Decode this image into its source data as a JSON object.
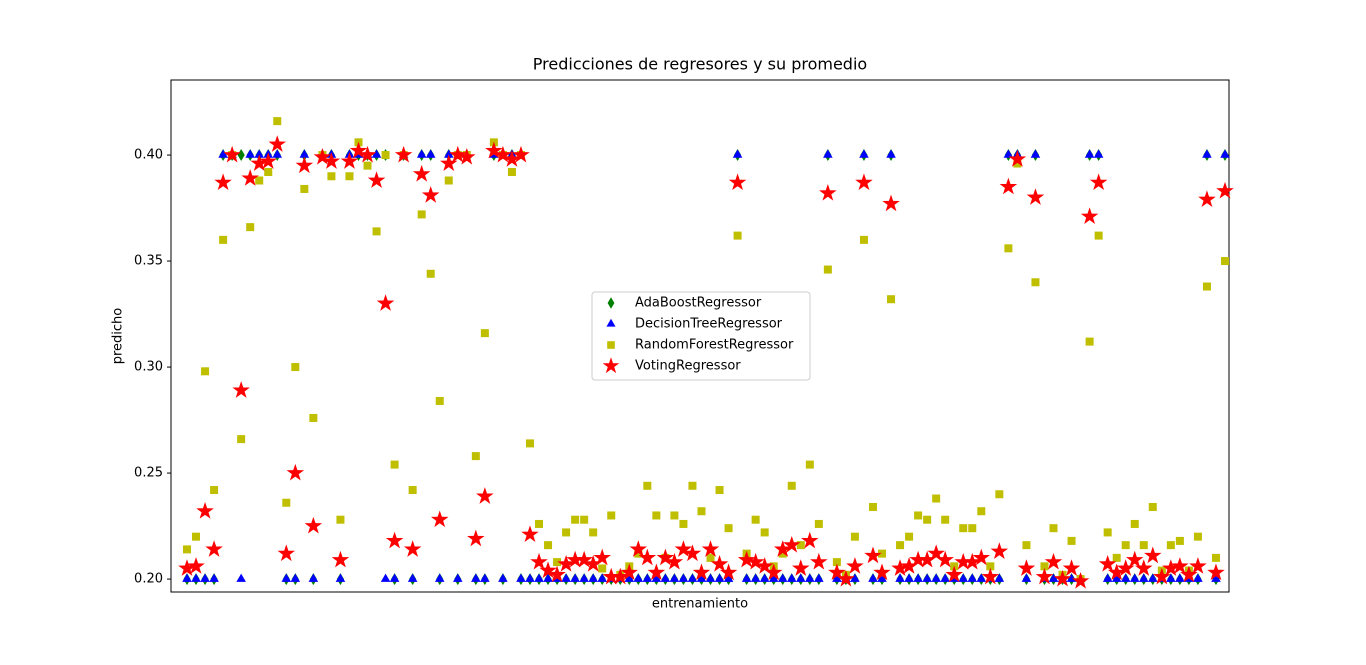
{
  "chart_data": {
    "type": "scatter",
    "title": "Predicciones de regresores y su promedio",
    "xlabel": "entrenamiento",
    "ylabel": "predicho",
    "ylim": [
      0.1939,
      0.4354
    ],
    "yticks": [
      {
        "value": 0.2,
        "label": "0.20"
      },
      0.25,
      {
        "value": 0.3,
        "label": "0.30"
      },
      0.35,
      {
        "value": 0.4,
        "label": "0.40"
      }
    ],
    "legend": "center",
    "series": [
      {
        "name": "AdaBoostRegressor",
        "color": "#008000",
        "marker": "diamond",
        "values": [
          0.2,
          0.2,
          0.2,
          0.2,
          0.4,
          0.4,
          0.4,
          0.4,
          0.4,
          0.4,
          0.4,
          0.2,
          0.2,
          0.4,
          0.2,
          0.4,
          0.4,
          0.2,
          0.4,
          0.4,
          0.4,
          0.4,
          0.4,
          0.2,
          0.4,
          0.2,
          0.4,
          0.4,
          0.2,
          0.4,
          0.2,
          0.4,
          0.2,
          0.2,
          0.4,
          0.2,
          0.4,
          0.2,
          0.2,
          0.2,
          0.2,
          0.2,
          0.2,
          0.2,
          0.2,
          0.2,
          0.2,
          0.2,
          0.2,
          0.2,
          0.2,
          0.2,
          0.2,
          0.2,
          0.2,
          0.2,
          0.2,
          0.2,
          0.2,
          0.2,
          0.2,
          0.4,
          0.2,
          0.2,
          0.2,
          0.2,
          0.2,
          0.2,
          0.2,
          0.2,
          0.2,
          0.4,
          0.2,
          0.2,
          0.2,
          0.4,
          0.2,
          0.2,
          0.4,
          0.2,
          0.2,
          0.2,
          0.2,
          0.2,
          0.2,
          0.2,
          0.2,
          0.2,
          0.2,
          0.2,
          0.2,
          0.4,
          0.4,
          0.2,
          0.4,
          0.2,
          0.2,
          0.2,
          0.2,
          0.2,
          0.4,
          0.4,
          0.2,
          0.2,
          0.2,
          0.2,
          0.2,
          0.2,
          0.2,
          0.2,
          0.2,
          0.2,
          0.2,
          0.4,
          0.2,
          0.4
        ]
      },
      {
        "name": "DecisionTreeRegressor",
        "color": "#0000ff",
        "marker": "triangle",
        "values": [
          0.2,
          0.2,
          0.2,
          0.2,
          0.4,
          0.4,
          0.2,
          0.4,
          0.4,
          0.4,
          0.4,
          0.2,
          0.2,
          0.4,
          0.2,
          0.4,
          0.4,
          0.2,
          0.4,
          0.4,
          0.4,
          0.4,
          0.2,
          0.2,
          0.4,
          0.2,
          0.4,
          0.4,
          0.2,
          0.4,
          0.2,
          0.4,
          0.2,
          0.2,
          0.4,
          0.2,
          0.4,
          0.2,
          0.2,
          0.2,
          0.2,
          0.2,
          0.2,
          0.2,
          0.2,
          0.2,
          0.2,
          0.2,
          0.2,
          0.2,
          0.2,
          0.2,
          0.2,
          0.2,
          0.2,
          0.2,
          0.2,
          0.2,
          0.2,
          0.2,
          0.2,
          0.4,
          0.2,
          0.2,
          0.2,
          0.2,
          0.2,
          0.2,
          0.2,
          0.2,
          0.2,
          0.4,
          0.2,
          0.2,
          0.2,
          0.4,
          0.2,
          0.2,
          0.4,
          0.2,
          0.2,
          0.2,
          0.2,
          0.2,
          0.2,
          0.2,
          0.2,
          0.2,
          0.2,
          0.2,
          0.2,
          0.4,
          0.4,
          0.2,
          0.4,
          0.2,
          0.2,
          0.2,
          0.2,
          0.2,
          0.4,
          0.4,
          0.2,
          0.2,
          0.2,
          0.2,
          0.2,
          0.2,
          0.2,
          0.2,
          0.2,
          0.2,
          0.2,
          0.4,
          0.2,
          0.4
        ]
      },
      {
        "name": "RandomForestRegressor",
        "color": "#bfbf00",
        "marker": "square",
        "values": [
          0.214,
          0.22,
          0.298,
          0.242,
          0.36,
          0.4,
          0.266,
          0.366,
          0.388,
          0.392,
          0.416,
          0.236,
          0.3,
          0.384,
          0.276,
          0.4,
          0.39,
          0.228,
          0.39,
          0.406,
          0.395,
          0.364,
          0.4,
          0.254,
          0.4,
          0.242,
          0.372,
          0.344,
          0.284,
          0.388,
          0.4,
          0.4,
          0.258,
          0.316,
          0.406,
          0.4,
          0.392,
          0.4,
          0.264,
          0.226,
          0.216,
          0.208,
          0.222,
          0.228,
          0.228,
          0.222,
          0.205,
          0.23,
          0.202,
          0.206,
          0.212,
          0.244,
          0.23,
          0.21,
          0.23,
          0.226,
          0.244,
          0.232,
          0.21,
          0.242,
          0.224,
          0.362,
          0.212,
          0.228,
          0.222,
          0.206,
          0.212,
          0.244,
          0.216,
          0.254,
          0.226,
          0.346,
          0.208,
          0.202,
          0.22,
          0.36,
          0.234,
          0.212,
          0.332,
          0.216,
          0.22,
          0.23,
          0.228,
          0.238,
          0.228,
          0.206,
          0.224,
          0.224,
          0.232,
          0.206,
          0.24,
          0.356,
          0.396,
          0.216,
          0.34,
          0.206,
          0.224,
          0.202,
          0.218,
          0.2,
          0.312,
          0.362,
          0.222,
          0.21,
          0.216,
          0.226,
          0.216,
          0.234,
          0.204,
          0.216,
          0.218,
          0.204,
          0.22,
          0.338,
          0.21,
          0.35
        ]
      },
      {
        "name": "VotingRegressor",
        "color": "#ff0000",
        "marker": "star",
        "values": [
          0.205,
          0.206,
          0.232,
          0.214,
          0.387,
          0.4,
          0.289,
          0.389,
          0.396,
          0.397,
          0.405,
          0.212,
          0.25,
          0.395,
          0.225,
          0.399,
          0.397,
          0.209,
          0.397,
          0.402,
          0.4,
          0.388,
          0.33,
          0.218,
          0.4,
          0.214,
          0.391,
          0.381,
          0.228,
          0.396,
          0.4,
          0.399,
          0.219,
          0.239,
          0.402,
          0.4,
          0.398,
          0.4,
          0.221,
          0.208,
          0.204,
          0.202,
          0.207,
          0.209,
          0.209,
          0.207,
          0.21,
          0.201,
          0.201,
          0.203,
          0.214,
          0.21,
          0.203,
          0.21,
          0.208,
          0.214,
          0.212,
          0.203,
          0.214,
          0.207,
          0.203,
          0.387,
          0.209,
          0.208,
          0.206,
          0.203,
          0.214,
          0.216,
          0.205,
          0.218,
          0.208,
          0.382,
          0.203,
          0.2,
          0.206,
          0.387,
          0.211,
          0.203,
          0.377,
          0.205,
          0.206,
          0.209,
          0.209,
          0.212,
          0.209,
          0.202,
          0.208,
          0.208,
          0.21,
          0.201,
          0.213,
          0.385,
          0.398,
          0.205,
          0.38,
          0.201,
          0.208,
          0.2,
          0.205,
          0.199,
          0.371,
          0.387,
          0.207,
          0.203,
          0.205,
          0.209,
          0.205,
          0.211,
          0.201,
          0.205,
          0.206,
          0.202,
          0.206,
          0.379,
          0.203,
          0.383
        ]
      }
    ]
  }
}
